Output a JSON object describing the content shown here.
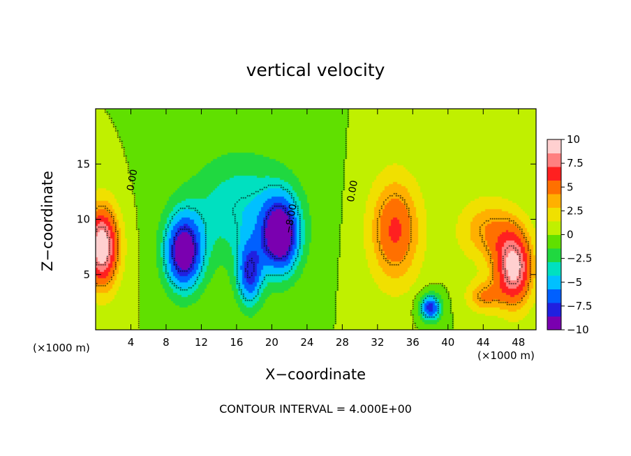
{
  "chart_data": {
    "type": "heatmap",
    "title": "vertical velocity",
    "xlabel": "X−coordinate",
    "ylabel": "Z−coordinate",
    "x_unit_label": "(×1000 m)",
    "xlim": [
      0,
      50
    ],
    "ylim": [
      0,
      20
    ],
    "x_ticks": [
      4,
      8,
      12,
      16,
      20,
      24,
      28,
      32,
      36,
      40,
      44,
      48
    ],
    "y_ticks": [
      5,
      10,
      15
    ],
    "colorbar": {
      "min": -10,
      "max": 10,
      "tick_values": [
        10,
        7.5,
        5,
        2.5,
        0,
        -2.5,
        -5,
        -7.5,
        -10
      ],
      "tick_labels": [
        "10",
        "7.5",
        "5",
        "2.5",
        "0",
        "−2.5",
        "−5",
        "−7.5",
        "−10"
      ],
      "colors": [
        "#7a00b0",
        "#2020e0",
        "#0060ff",
        "#00c0ff",
        "#00e0c0",
        "#20d840",
        "#60e000",
        "#c0f000",
        "#f0e000",
        "#ffb000",
        "#ff7000",
        "#ff2020",
        "#ff8080",
        "#ffd0d0"
      ]
    },
    "contour_interval": 4.0,
    "contour_labels": [
      {
        "text": "0.00",
        "x": 4.5,
        "z": 13.5
      },
      {
        "text": "0.00",
        "x": 29.5,
        "z": 12.5
      },
      {
        "text": "−8.00",
        "x": 22.5,
        "z": 10.0
      }
    ],
    "features": [
      {
        "x": 0.7,
        "z": 7.5,
        "sx": 2.0,
        "sz": 3.8,
        "value": 10
      },
      {
        "x": 10.0,
        "z": 7.0,
        "sx": 2.2,
        "sz": 3.5,
        "value": -10
      },
      {
        "x": 21.0,
        "z": 8.5,
        "sx": 2.2,
        "sz": 3.5,
        "value": -10
      },
      {
        "x": 17.5,
        "z": 5.0,
        "sx": 1.5,
        "sz": 3.0,
        "value": -7
      },
      {
        "x": 16.5,
        "z": 11.0,
        "sx": 6.0,
        "sz": 5.0,
        "value": -4
      },
      {
        "x": 38.0,
        "z": 2.0,
        "sx": 1.2,
        "sz": 1.2,
        "value": -8
      },
      {
        "x": 34.0,
        "z": 9.0,
        "sx": 3.0,
        "sz": 5.0,
        "value": 6
      },
      {
        "x": 47.5,
        "z": 5.5,
        "sx": 2.2,
        "sz": 3.5,
        "value": 9
      },
      {
        "x": 44.5,
        "z": 9.0,
        "sx": 3.5,
        "sz": 3.0,
        "value": 4
      },
      {
        "x": 44.0,
        "z": 3.0,
        "sx": 2.0,
        "sz": 1.5,
        "value": 4
      }
    ]
  },
  "contour_note": "CONTOUR INTERVAL = 4.000E+00"
}
